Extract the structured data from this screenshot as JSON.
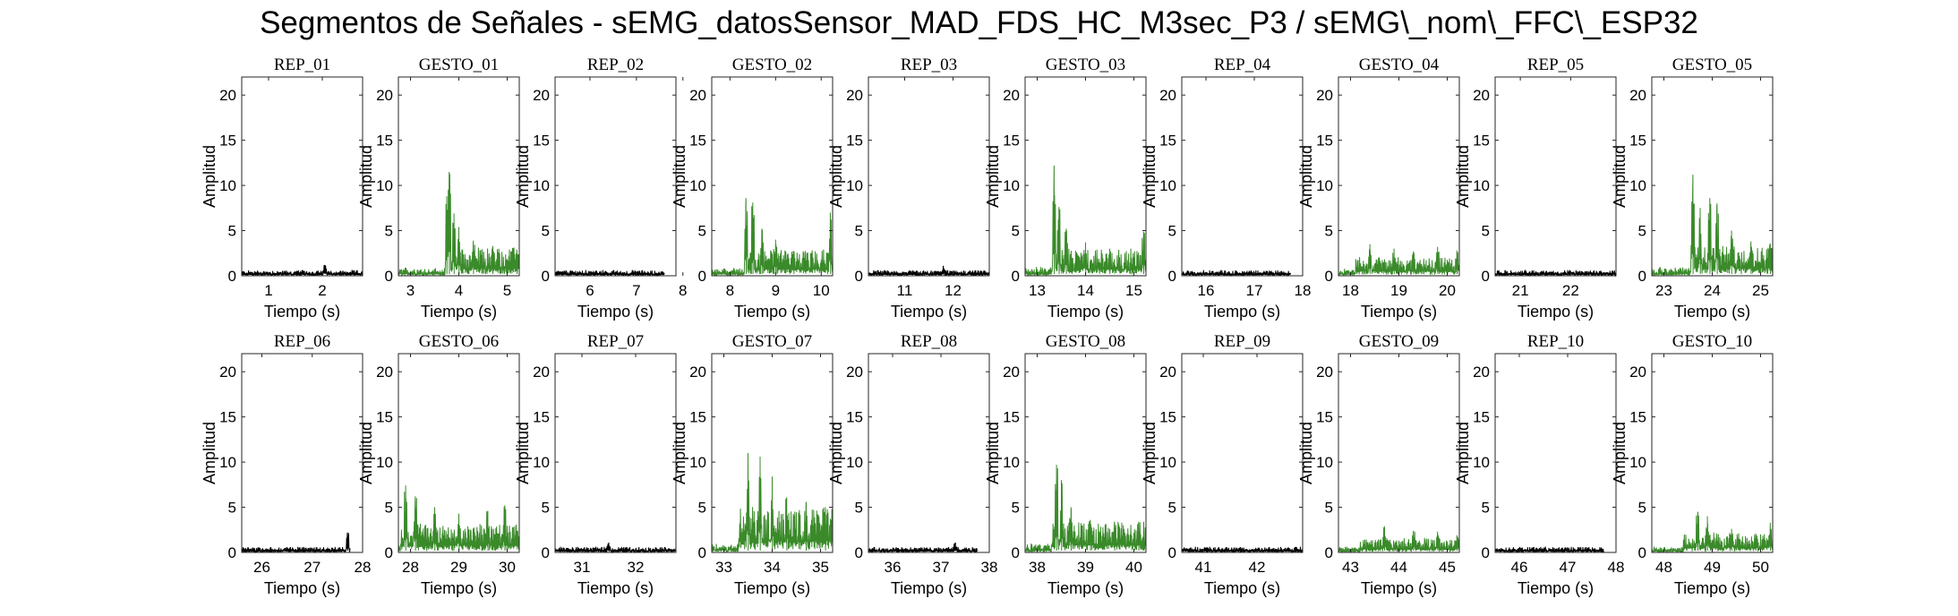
{
  "figure": {
    "title": "Segmentos de Señales - sEMG_datosSensor_MAD_FDS_HC_M3sec_P3 / sEMG\\_nom\\_FFC\\_ESP32"
  },
  "colors": {
    "rep": "#000000",
    "gesto": "#3a8a2a",
    "axes": "#262626"
  },
  "chart_data": [
    {
      "type": "line",
      "title": "REP_01",
      "xlabel": "Tiempo (s)",
      "ylabel": "Amplitud",
      "xlim": [
        0.5,
        2.75
      ],
      "ylim": [
        0,
        22
      ],
      "xticks": [
        1,
        2
      ],
      "yticks": [
        0,
        5,
        10,
        15,
        20
      ],
      "kind": "rep",
      "series": [
        {
          "x_start": 0.5,
          "x_end": 2.75,
          "baseline": 0.5,
          "noise": 0.3,
          "peaks": [
            [
              2.05,
              1.2
            ]
          ]
        }
      ]
    },
    {
      "type": "line",
      "title": "GESTO_01",
      "xlabel": "Tiempo (s)",
      "ylabel": "Amplitud",
      "xlim": [
        2.75,
        5.25
      ],
      "ylim": [
        0,
        22
      ],
      "xticks": [
        3,
        4,
        5
      ],
      "yticks": [
        0,
        5,
        10,
        15,
        20
      ],
      "kind": "gesto",
      "series": [
        {
          "x_start": 2.75,
          "x_end": 5.25,
          "baseline": 0.7,
          "noise": 0.8,
          "onset": 3.75,
          "active_level": 2.6,
          "peaks": [
            [
              3.75,
              8.8
            ],
            [
              3.8,
              11.5
            ],
            [
              3.9,
              6.9
            ],
            [
              4.0,
              5.4
            ],
            [
              4.3,
              3.9
            ],
            [
              4.7,
              3.3
            ],
            [
              5.2,
              2.9
            ]
          ]
        }
      ]
    },
    {
      "type": "line",
      "title": "REP_02",
      "xlabel": "Tiempo (s)",
      "ylabel": "Amplitud",
      "xlim": [
        5.25,
        7.85
      ],
      "ylim": [
        0,
        22
      ],
      "xticks": [
        6,
        7,
        8
      ],
      "yticks": [
        0,
        5,
        10,
        15,
        20
      ],
      "kind": "rep",
      "series": [
        {
          "x_start": 5.25,
          "x_end": 7.6,
          "baseline": 0.5,
          "noise": 0.3,
          "peaks": []
        }
      ]
    },
    {
      "type": "line",
      "title": "GESTO_02",
      "xlabel": "Tiempo (s)",
      "ylabel": "Amplitud",
      "xlim": [
        7.6,
        10.25
      ],
      "ylim": [
        0,
        22
      ],
      "xticks": [
        8,
        9,
        10
      ],
      "yticks": [
        0,
        5,
        10,
        15,
        20
      ],
      "kind": "gesto",
      "series": [
        {
          "x_start": 7.6,
          "x_end": 10.25,
          "baseline": 0.7,
          "noise": 0.8,
          "onset": 8.35,
          "active_level": 2.4,
          "peaks": [
            [
              8.35,
              8.6
            ],
            [
              8.5,
              8.1
            ],
            [
              8.7,
              5.2
            ],
            [
              9.0,
              4.0
            ],
            [
              9.4,
              2.7
            ],
            [
              10.2,
              7.0
            ]
          ]
        }
      ]
    },
    {
      "type": "line",
      "title": "REP_03",
      "xlabel": "Tiempo (s)",
      "ylabel": "Amplitud",
      "xlim": [
        10.25,
        12.75
      ],
      "ylim": [
        0,
        22
      ],
      "xticks": [
        11,
        12
      ],
      "yticks": [
        0,
        5,
        10,
        15,
        20
      ],
      "kind": "rep",
      "series": [
        {
          "x_start": 10.25,
          "x_end": 12.75,
          "baseline": 0.5,
          "noise": 0.3,
          "peaks": [
            [
              11.8,
              1.1
            ]
          ]
        }
      ]
    },
    {
      "type": "line",
      "title": "GESTO_03",
      "xlabel": "Tiempo (s)",
      "ylabel": "Amplitud",
      "xlim": [
        12.75,
        15.25
      ],
      "ylim": [
        0,
        22
      ],
      "xticks": [
        13,
        14,
        15
      ],
      "yticks": [
        0,
        5,
        10,
        15,
        20
      ],
      "kind": "gesto",
      "series": [
        {
          "x_start": 12.75,
          "x_end": 15.25,
          "baseline": 0.7,
          "noise": 0.9,
          "onset": 13.3,
          "active_level": 2.5,
          "peaks": [
            [
              13.35,
              12.2
            ],
            [
              13.45,
              7.6
            ],
            [
              13.6,
              5.2
            ],
            [
              14.0,
              3.7
            ],
            [
              14.5,
              3.0
            ],
            [
              15.2,
              4.9
            ]
          ]
        }
      ]
    },
    {
      "type": "line",
      "title": "REP_04",
      "xlabel": "Tiempo (s)",
      "ylabel": "Amplitud",
      "xlim": [
        15.5,
        18.0
      ],
      "ylim": [
        0,
        22
      ],
      "xticks": [
        16,
        17,
        18
      ],
      "yticks": [
        0,
        5,
        10,
        15,
        20
      ],
      "kind": "rep",
      "series": [
        {
          "x_start": 15.5,
          "x_end": 17.75,
          "baseline": 0.5,
          "noise": 0.3,
          "peaks": []
        }
      ]
    },
    {
      "type": "line",
      "title": "GESTO_04",
      "xlabel": "Tiempo (s)",
      "ylabel": "Amplitud",
      "xlim": [
        17.75,
        20.25
      ],
      "ylim": [
        0,
        22
      ],
      "xticks": [
        18,
        19,
        20
      ],
      "yticks": [
        0,
        5,
        10,
        15,
        20
      ],
      "kind": "gesto",
      "series": [
        {
          "x_start": 17.75,
          "x_end": 20.25,
          "baseline": 0.6,
          "noise": 0.7,
          "onset": 18.1,
          "active_level": 1.7,
          "peaks": [
            [
              18.4,
              3.5
            ],
            [
              18.9,
              3.0
            ],
            [
              19.3,
              2.7
            ],
            [
              19.8,
              3.2
            ],
            [
              20.2,
              2.8
            ]
          ]
        }
      ]
    },
    {
      "type": "line",
      "title": "REP_05",
      "xlabel": "Tiempo (s)",
      "ylabel": "Amplitud",
      "xlim": [
        20.5,
        22.9
      ],
      "ylim": [
        0,
        22
      ],
      "xticks": [
        21,
        22
      ],
      "yticks": [
        0,
        5,
        10,
        15,
        20
      ],
      "kind": "rep",
      "series": [
        {
          "x_start": 20.5,
          "x_end": 22.9,
          "baseline": 0.5,
          "noise": 0.3,
          "peaks": []
        }
      ]
    },
    {
      "type": "line",
      "title": "GESTO_05",
      "xlabel": "Tiempo (s)",
      "ylabel": "Amplitud",
      "xlim": [
        22.75,
        25.25
      ],
      "ylim": [
        0,
        22
      ],
      "xticks": [
        23,
        24,
        25
      ],
      "yticks": [
        0,
        5,
        10,
        15,
        20
      ],
      "kind": "gesto",
      "series": [
        {
          "x_start": 22.75,
          "x_end": 25.25,
          "baseline": 0.7,
          "noise": 0.8,
          "onset": 23.55,
          "active_level": 2.8,
          "peaks": [
            [
              23.6,
              11.2
            ],
            [
              23.75,
              7.5
            ],
            [
              23.95,
              8.6
            ],
            [
              24.1,
              8.0
            ],
            [
              24.4,
              5.0
            ],
            [
              24.8,
              3.8
            ],
            [
              25.2,
              3.6
            ]
          ]
        }
      ]
    },
    {
      "type": "line",
      "title": "REP_06",
      "xlabel": "Tiempo (s)",
      "ylabel": "Amplitud",
      "xlim": [
        25.6,
        28.0
      ],
      "ylim": [
        0,
        22
      ],
      "xticks": [
        26,
        27,
        28
      ],
      "yticks": [
        0,
        5,
        10,
        15,
        20
      ],
      "kind": "rep",
      "series": [
        {
          "x_start": 25.6,
          "x_end": 27.75,
          "baseline": 0.5,
          "noise": 0.3,
          "peaks": [
            [
              27.7,
              2.2
            ]
          ]
        }
      ]
    },
    {
      "type": "line",
      "title": "GESTO_06",
      "xlabel": "Tiempo (s)",
      "ylabel": "Amplitud",
      "xlim": [
        27.75,
        30.25
      ],
      "ylim": [
        0,
        22
      ],
      "xticks": [
        28,
        29,
        30
      ],
      "yticks": [
        0,
        5,
        10,
        15,
        20
      ],
      "kind": "gesto",
      "series": [
        {
          "x_start": 27.75,
          "x_end": 30.25,
          "baseline": 0.9,
          "noise": 1.0,
          "onset": 27.8,
          "active_level": 2.6,
          "peaks": [
            [
              27.9,
              7.4
            ],
            [
              28.1,
              6.2
            ],
            [
              28.5,
              5.0
            ],
            [
              29.0,
              4.3
            ],
            [
              29.6,
              4.6
            ],
            [
              29.95,
              5.2
            ]
          ]
        }
      ]
    },
    {
      "type": "line",
      "title": "REP_07",
      "xlabel": "Tiempo (s)",
      "ylabel": "Amplitud",
      "xlim": [
        30.5,
        32.75
      ],
      "ylim": [
        0,
        22
      ],
      "xticks": [
        31,
        32
      ],
      "yticks": [
        0,
        5,
        10,
        15,
        20
      ],
      "kind": "rep",
      "series": [
        {
          "x_start": 30.5,
          "x_end": 32.75,
          "baseline": 0.5,
          "noise": 0.3,
          "peaks": [
            [
              31.5,
              1.1
            ]
          ]
        }
      ]
    },
    {
      "type": "line",
      "title": "GESTO_07",
      "xlabel": "Tiempo (s)",
      "ylabel": "Amplitud",
      "xlim": [
        32.75,
        35.25
      ],
      "ylim": [
        0,
        22
      ],
      "xticks": [
        33,
        34,
        35
      ],
      "yticks": [
        0,
        5,
        10,
        15,
        20
      ],
      "kind": "gesto",
      "series": [
        {
          "x_start": 32.75,
          "x_end": 35.25,
          "baseline": 0.8,
          "noise": 0.9,
          "onset": 33.3,
          "active_level": 4.2,
          "peaks": [
            [
              33.5,
              11.0
            ],
            [
              33.75,
              10.6
            ],
            [
              34.0,
              8.4
            ],
            [
              34.3,
              6.1
            ],
            [
              34.7,
              5.6
            ],
            [
              35.1,
              5.0
            ]
          ]
        }
      ]
    },
    {
      "type": "line",
      "title": "REP_08",
      "xlabel": "Tiempo (s)",
      "ylabel": "Amplitud",
      "xlim": [
        35.5,
        38.0
      ],
      "ylim": [
        0,
        22
      ],
      "xticks": [
        36,
        37,
        38
      ],
      "yticks": [
        0,
        5,
        10,
        15,
        20
      ],
      "kind": "rep",
      "series": [
        {
          "x_start": 35.5,
          "x_end": 37.75,
          "baseline": 0.5,
          "noise": 0.3,
          "peaks": [
            [
              37.3,
              1.1
            ]
          ]
        }
      ]
    },
    {
      "type": "line",
      "title": "GESTO_08",
      "xlabel": "Tiempo (s)",
      "ylabel": "Amplitud",
      "xlim": [
        37.75,
        40.25
      ],
      "ylim": [
        0,
        22
      ],
      "xticks": [
        38,
        39,
        40
      ],
      "yticks": [
        0,
        5,
        10,
        15,
        20
      ],
      "kind": "gesto",
      "series": [
        {
          "x_start": 37.75,
          "x_end": 40.25,
          "baseline": 0.8,
          "noise": 0.9,
          "onset": 38.3,
          "active_level": 2.8,
          "peaks": [
            [
              38.4,
              9.7
            ],
            [
              38.5,
              8.0
            ],
            [
              38.7,
              5.0
            ],
            [
              39.1,
              3.6
            ],
            [
              39.6,
              3.4
            ],
            [
              40.1,
              3.4
            ]
          ]
        }
      ]
    },
    {
      "type": "line",
      "title": "REP_09",
      "xlabel": "Tiempo (s)",
      "ylabel": "Amplitud",
      "xlim": [
        40.6,
        42.85
      ],
      "ylim": [
        0,
        22
      ],
      "xticks": [
        41,
        42
      ],
      "yticks": [
        0,
        5,
        10,
        15,
        20
      ],
      "kind": "rep",
      "series": [
        {
          "x_start": 40.6,
          "x_end": 42.85,
          "baseline": 0.5,
          "noise": 0.3,
          "peaks": []
        }
      ]
    },
    {
      "type": "line",
      "title": "GESTO_09",
      "xlabel": "Tiempo (s)",
      "ylabel": "Amplitud",
      "xlim": [
        42.75,
        45.25
      ],
      "ylim": [
        0,
        22
      ],
      "xticks": [
        43,
        44,
        45
      ],
      "yticks": [
        0,
        5,
        10,
        15,
        20
      ],
      "kind": "gesto",
      "series": [
        {
          "x_start": 42.75,
          "x_end": 45.25,
          "baseline": 0.5,
          "noise": 0.5,
          "onset": 43.2,
          "active_level": 1.3,
          "peaks": [
            [
              43.7,
              2.9
            ],
            [
              44.3,
              2.4
            ],
            [
              44.8,
              2.3
            ],
            [
              45.2,
              1.9
            ]
          ]
        }
      ]
    },
    {
      "type": "line",
      "title": "REP_10",
      "xlabel": "Tiempo (s)",
      "ylabel": "Amplitud",
      "xlim": [
        45.5,
        48.0
      ],
      "ylim": [
        0,
        22
      ],
      "xticks": [
        46,
        47,
        48
      ],
      "yticks": [
        0,
        5,
        10,
        15,
        20
      ],
      "kind": "rep",
      "series": [
        {
          "x_start": 45.5,
          "x_end": 47.75,
          "baseline": 0.5,
          "noise": 0.3,
          "peaks": []
        }
      ]
    },
    {
      "type": "line",
      "title": "GESTO_10",
      "xlabel": "Tiempo (s)",
      "ylabel": "Amplitud",
      "xlim": [
        47.75,
        50.25
      ],
      "ylim": [
        0,
        22
      ],
      "xticks": [
        48,
        49,
        50
      ],
      "yticks": [
        0,
        5,
        10,
        15,
        20
      ],
      "kind": "gesto",
      "series": [
        {
          "x_start": 47.75,
          "x_end": 50.25,
          "baseline": 0.5,
          "noise": 0.5,
          "onset": 48.4,
          "active_level": 1.8,
          "peaks": [
            [
              48.7,
              4.5
            ],
            [
              48.9,
              4.0
            ],
            [
              49.4,
              2.6
            ],
            [
              49.9,
              2.1
            ],
            [
              50.2,
              3.3
            ]
          ]
        }
      ]
    }
  ]
}
